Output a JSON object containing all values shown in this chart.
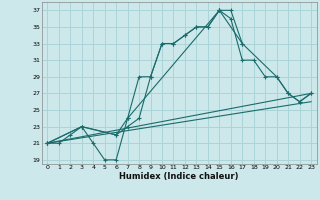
{
  "xlabel": "Humidex (Indice chaleur)",
  "bg_color": "#cce8ea",
  "grid_color": "#aad4d8",
  "line_color": "#1a6b6b",
  "xlim": [
    -0.5,
    23.5
  ],
  "ylim": [
    18.5,
    38.0
  ],
  "xticks": [
    0,
    1,
    2,
    3,
    4,
    5,
    6,
    7,
    8,
    9,
    10,
    11,
    12,
    13,
    14,
    15,
    16,
    17,
    18,
    19,
    20,
    21,
    22,
    23
  ],
  "yticks": [
    19,
    21,
    23,
    25,
    27,
    29,
    31,
    33,
    35,
    37
  ],
  "line1_x": [
    0,
    1,
    2,
    3,
    4,
    5,
    6,
    7,
    8,
    9,
    10,
    11,
    12,
    13,
    14,
    15,
    16,
    17
  ],
  "line1_y": [
    21,
    21,
    22,
    23,
    21,
    19,
    19,
    24,
    29,
    29,
    33,
    33,
    34,
    35,
    35,
    37,
    37,
    33
  ],
  "line2_x": [
    0,
    3,
    6,
    7,
    8,
    9,
    10,
    11,
    12,
    13,
    14,
    15,
    16,
    17,
    18,
    19,
    20,
    21,
    22,
    23
  ],
  "line2_y": [
    21,
    23,
    22,
    23,
    24,
    29,
    33,
    33,
    34,
    35,
    35,
    37,
    36,
    31,
    31,
    29,
    29,
    27,
    26,
    27
  ],
  "line3_x": [
    0,
    3,
    6,
    7,
    15,
    17,
    20,
    21,
    22,
    23
  ],
  "line3_y": [
    21,
    23,
    22,
    24,
    37,
    33,
    29,
    27,
    26,
    27
  ],
  "line4_x": [
    0,
    23
  ],
  "line4_y": [
    21,
    26
  ],
  "line5_x": [
    0,
    23
  ],
  "line5_y": [
    21,
    27
  ]
}
